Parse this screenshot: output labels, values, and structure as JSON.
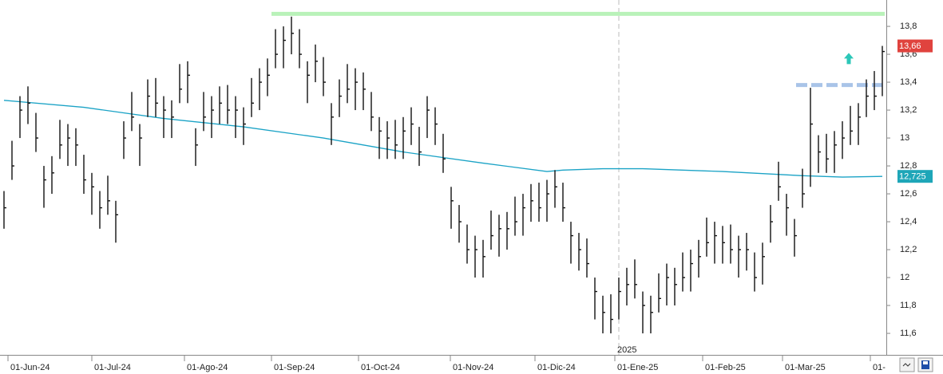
{
  "chart_data": {
    "type": "ohlc",
    "x": [
      0,
      1,
      2,
      3,
      4,
      5,
      6,
      7,
      8,
      9,
      10,
      11,
      12,
      13,
      14,
      15,
      16,
      17,
      18,
      19,
      20,
      21,
      22,
      23,
      24,
      25,
      26,
      27,
      28,
      29,
      30,
      31,
      32,
      33,
      34,
      35,
      36,
      37,
      38,
      39,
      40,
      41,
      42,
      43,
      44,
      45,
      46,
      47,
      48,
      49,
      50,
      51,
      52,
      53,
      54,
      55,
      56,
      57,
      58,
      59,
      60,
      61,
      62,
      63,
      64,
      65,
      66,
      67,
      68,
      69,
      70,
      71,
      72,
      73,
      74,
      75,
      76,
      77,
      78,
      79,
      80,
      81,
      82,
      83,
      84,
      85,
      86,
      87,
      88,
      89,
      90,
      91,
      92,
      93,
      94,
      95,
      96,
      97,
      98,
      99,
      100,
      101,
      102,
      103,
      104,
      105,
      106,
      107,
      108,
      109,
      110
    ],
    "high": [
      12.62,
      12.98,
      13.3,
      13.37,
      13.18,
      12.8,
      12.87,
      13.13,
      13.1,
      13.07,
      12.88,
      12.75,
      12.62,
      12.73,
      12.55,
      13.12,
      13.33,
      13.1,
      13.42,
      13.43,
      13.3,
      13.27,
      13.53,
      13.55,
      13.07,
      13.33,
      13.3,
      13.37,
      13.38,
      13.3,
      13.22,
      13.43,
      13.5,
      13.57,
      13.78,
      13.8,
      13.87,
      13.78,
      13.55,
      13.67,
      13.58,
      13.25,
      13.42,
      13.53,
      13.5,
      13.47,
      13.33,
      13.15,
      13.12,
      13.13,
      13.15,
      13.22,
      13.08,
      13.3,
      13.22,
      13.03,
      12.65,
      12.52,
      12.38,
      12.3,
      12.27,
      12.48,
      12.45,
      12.47,
      12.58,
      12.6,
      12.67,
      12.68,
      12.7,
      12.77,
      12.68,
      12.4,
      12.32,
      12.28,
      12.0,
      11.87,
      11.88,
      12.0,
      12.07,
      12.13,
      11.9,
      11.87,
      12.03,
      12.1,
      12.07,
      12.18,
      12.2,
      12.27,
      12.43,
      12.4,
      12.37,
      12.38,
      12.3,
      12.32,
      12.18,
      12.25,
      12.52,
      12.83,
      12.6,
      12.42,
      12.78,
      13.36,
      13.02,
      13.03,
      13.05,
      13.12,
      13.23,
      13.25,
      13.42,
      13.48,
      13.66
    ],
    "low": [
      12.35,
      12.7,
      13.0,
      13.1,
      12.9,
      12.5,
      12.6,
      12.85,
      12.8,
      12.8,
      12.6,
      12.45,
      12.35,
      12.45,
      12.25,
      12.85,
      13.05,
      12.8,
      13.15,
      13.15,
      13.0,
      13.0,
      13.25,
      13.25,
      12.8,
      13.05,
      13.0,
      13.1,
      13.1,
      13.0,
      12.95,
      13.15,
      13.2,
      13.3,
      13.5,
      13.5,
      13.6,
      13.5,
      13.25,
      13.4,
      13.3,
      12.95,
      13.15,
      13.25,
      13.2,
      13.2,
      13.05,
      12.85,
      12.85,
      12.85,
      12.85,
      12.95,
      12.8,
      13.0,
      12.95,
      12.75,
      12.35,
      12.25,
      12.1,
      12.0,
      12.0,
      12.2,
      12.15,
      12.2,
      12.3,
      12.3,
      12.4,
      12.4,
      12.4,
      12.5,
      12.4,
      12.1,
      12.05,
      12.0,
      11.7,
      11.6,
      11.6,
      11.7,
      11.8,
      11.85,
      11.6,
      11.6,
      11.75,
      11.8,
      11.8,
      11.9,
      11.9,
      12.0,
      12.15,
      12.1,
      12.1,
      12.1,
      12.0,
      12.05,
      11.9,
      11.95,
      12.25,
      12.55,
      12.3,
      12.15,
      12.5,
      12.65,
      12.75,
      12.75,
      12.75,
      12.85,
      12.95,
      12.95,
      13.15,
      13.2,
      13.3
    ],
    "close": [
      12.5,
      12.8,
      13.2,
      13.25,
      13.0,
      12.7,
      12.75,
      12.95,
      13.0,
      12.95,
      12.7,
      12.65,
      12.5,
      12.55,
      12.45,
      13.0,
      13.15,
      13.0,
      13.3,
      13.25,
      13.2,
      13.15,
      13.35,
      13.45,
      12.95,
      13.15,
      13.2,
      13.25,
      13.2,
      13.2,
      13.1,
      13.25,
      13.4,
      13.45,
      13.6,
      13.7,
      13.75,
      13.6,
      13.45,
      13.55,
      13.4,
      13.15,
      13.3,
      13.35,
      13.4,
      13.35,
      13.15,
      13.05,
      13.0,
      12.95,
      13.05,
      13.1,
      12.9,
      13.2,
      13.1,
      12.85,
      12.55,
      12.4,
      12.2,
      12.2,
      12.15,
      12.3,
      12.35,
      12.35,
      12.4,
      12.5,
      12.55,
      12.5,
      12.6,
      12.65,
      12.5,
      12.3,
      12.2,
      12.1,
      11.9,
      11.75,
      11.7,
      11.9,
      11.95,
      11.95,
      11.8,
      11.75,
      11.85,
      12.0,
      11.95,
      12.0,
      12.1,
      12.15,
      12.25,
      12.3,
      12.25,
      12.2,
      12.2,
      12.2,
      12.0,
      12.15,
      12.4,
      12.65,
      12.5,
      12.3,
      12.6,
      13.1,
      12.9,
      12.85,
      12.95,
      13.0,
      13.05,
      13.15,
      13.3,
      13.3,
      13.62
    ],
    "color": "#111111",
    "moving_average": {
      "x": [
        0,
        10,
        20,
        30,
        40,
        50,
        60,
        68,
        70,
        75,
        80,
        90,
        100,
        105,
        110
      ],
      "values": [
        13.27,
        13.22,
        13.14,
        13.08,
        13.0,
        12.9,
        12.82,
        12.76,
        12.77,
        12.78,
        12.78,
        12.76,
        12.73,
        12.72,
        12.725
      ],
      "color": "#1ba3c6"
    },
    "last_labels": [
      {
        "value": 13.66,
        "label": "13,66",
        "color": "#e0433e"
      },
      {
        "value": 12.725,
        "label": "12,725",
        "color": "#1ea6b8"
      }
    ],
    "levels": [
      {
        "value": 13.89,
        "x": [
          33.5,
          110.3
        ],
        "color": "#b9f2b9",
        "dashed": false
      },
      {
        "value": 13.38,
        "x": [
          99.2,
          110
        ],
        "color": "#a9c4e8",
        "dashed": true
      }
    ],
    "arrow": {
      "x": 105.8,
      "value": 13.57,
      "color": "#2cc7b8"
    },
    "year_marker": {
      "x": 77,
      "label": "2025"
    },
    "xlim": [
      -0.5,
      110.5
    ],
    "xticks": [
      {
        "value": 0.5,
        "label": "01-Jun-24"
      },
      {
        "value": 11,
        "label": "01-Jul-24"
      },
      {
        "value": 22.6,
        "label": "01-Ago-24"
      },
      {
        "value": 33.5,
        "label": "01-Sep-24"
      },
      {
        "value": 44.4,
        "label": "01-Oct-24"
      },
      {
        "value": 55.9,
        "label": "01-Nov-24"
      },
      {
        "value": 66.5,
        "label": "01-Dic-24"
      },
      {
        "value": 76.5,
        "label": "01-Ene-25"
      },
      {
        "value": 87.5,
        "label": "01-Feb-25"
      },
      {
        "value": 97.5,
        "label": "01-Mar-25"
      },
      {
        "value": 108.5,
        "label": "01-"
      }
    ],
    "ylim": [
      11.446,
      13.989
    ],
    "yticks": [
      {
        "value": 13.8,
        "label": "13,8"
      },
      {
        "value": 13.6,
        "label": "13,6"
      },
      {
        "value": 13.4,
        "label": "13,4"
      },
      {
        "value": 13.2,
        "label": "13,2"
      },
      13,
      {
        "value": 12.8,
        "label": "12,8"
      },
      {
        "value": 12.6,
        "label": "12,6"
      },
      {
        "value": 12.4,
        "label": "12,4"
      },
      {
        "value": 12.2,
        "label": "12,2"
      },
      12,
      {
        "value": 11.8,
        "label": "11,8"
      },
      {
        "value": 11.6,
        "label": "11,6"
      }
    ]
  }
}
